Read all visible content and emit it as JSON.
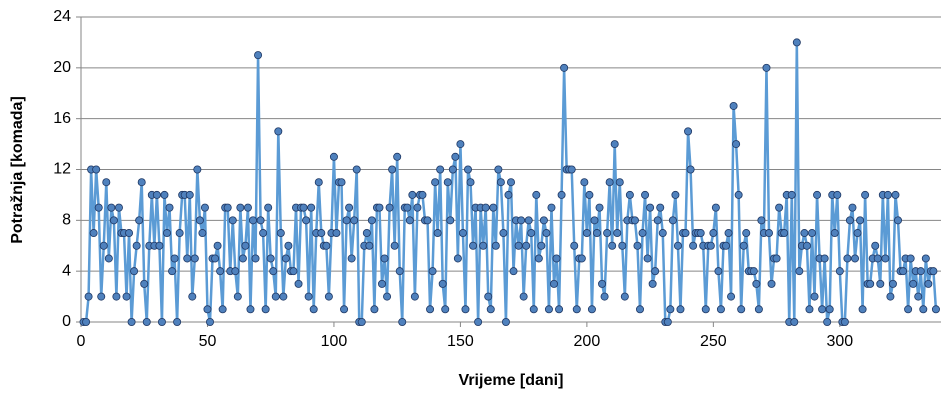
{
  "chart_data": {
    "type": "line",
    "x_label": "Vrijeme [dani]",
    "y_label": "Potražnja [komada]",
    "x": [
      1,
      2,
      3,
      4,
      5,
      6,
      7,
      8,
      9,
      10,
      11,
      12,
      13,
      14,
      15,
      16,
      17,
      18,
      19,
      20,
      21,
      22,
      23,
      24,
      25,
      26,
      27,
      28,
      29,
      30,
      31,
      32,
      33,
      34,
      35,
      36,
      37,
      38,
      39,
      40,
      41,
      42,
      43,
      44,
      45,
      46,
      47,
      48,
      49,
      50,
      51,
      52,
      53,
      54,
      55,
      56,
      57,
      58,
      59,
      60,
      61,
      62,
      63,
      64,
      65,
      66,
      67,
      68,
      69,
      70,
      71,
      72,
      73,
      74,
      75,
      76,
      77,
      78,
      79,
      80,
      81,
      82,
      83,
      84,
      85,
      86,
      87,
      88,
      89,
      90,
      91,
      92,
      93,
      94,
      95,
      96,
      97,
      98,
      99,
      100,
      101,
      102,
      103,
      104,
      105,
      106,
      107,
      108,
      109,
      110,
      111,
      112,
      113,
      114,
      115,
      116,
      117,
      118,
      119,
      120,
      121,
      122,
      123,
      124,
      125,
      126,
      127,
      128,
      129,
      130,
      131,
      132,
      133,
      134,
      135,
      136,
      137,
      138,
      139,
      140,
      141,
      142,
      143,
      144,
      145,
      146,
      147,
      148,
      149,
      150,
      151,
      152,
      153,
      154,
      155,
      156,
      157,
      158,
      159,
      160,
      161,
      162,
      163,
      164,
      165,
      166,
      167,
      168,
      169,
      170,
      171,
      172,
      173,
      174,
      175,
      176,
      177,
      178,
      179,
      180,
      181,
      182,
      183,
      184,
      185,
      186,
      187,
      188,
      189,
      190,
      191,
      192,
      193,
      194,
      195,
      196,
      197,
      198,
      199,
      200,
      201,
      202,
      203,
      204,
      205,
      206,
      207,
      208,
      209,
      210,
      211,
      212,
      213,
      214,
      215,
      216,
      217,
      218,
      219,
      220,
      221,
      222,
      223,
      224,
      225,
      226,
      227,
      228,
      229,
      230,
      231,
      232,
      233,
      234,
      235,
      236,
      237,
      238,
      239,
      240,
      241,
      242,
      243,
      244,
      245,
      246,
      247,
      248,
      249,
      250,
      251,
      252,
      253,
      254,
      255,
      256,
      257,
      258,
      259,
      260,
      261,
      262,
      263,
      264,
      265,
      266,
      267,
      268,
      269,
      270,
      271,
      272,
      273,
      274,
      275,
      276,
      277,
      278,
      279,
      280,
      281,
      282,
      283,
      284,
      285,
      286,
      287,
      288,
      289,
      290,
      291,
      292,
      293,
      294,
      295,
      296,
      297,
      298,
      299,
      300,
      301,
      302,
      303,
      304,
      305,
      306,
      307,
      308,
      309,
      310,
      311,
      312,
      313,
      314,
      315,
      316,
      317,
      318,
      319,
      320,
      321,
      322,
      323,
      324,
      325,
      326,
      327,
      328,
      329,
      330,
      331,
      332,
      333,
      334,
      335,
      336,
      337,
      338
    ],
    "values": [
      0,
      0,
      2,
      12,
      7,
      12,
      9,
      2,
      6,
      11,
      5,
      9,
      8,
      2,
      9,
      7,
      7,
      2,
      7,
      0,
      4,
      6,
      8,
      11,
      3,
      0,
      6,
      10,
      6,
      10,
      6,
      0,
      10,
      7,
      9,
      4,
      5,
      0,
      7,
      10,
      10,
      5,
      10,
      2,
      5,
      12,
      8,
      7,
      9,
      1,
      0,
      5,
      5,
      6,
      4,
      1,
      9,
      9,
      4,
      8,
      4,
      2,
      9,
      5,
      6,
      9,
      1,
      8,
      5,
      21,
      8,
      7,
      1,
      9,
      5,
      4,
      2,
      15,
      7,
      2,
      5,
      6,
      4,
      4,
      9,
      3,
      9,
      9,
      8,
      2,
      9,
      1,
      7,
      11,
      7,
      6,
      6,
      2,
      7,
      13,
      7,
      11,
      11,
      1,
      8,
      9,
      5,
      8,
      12,
      0,
      0,
      6,
      7,
      6,
      8,
      1,
      9,
      9,
      3,
      5,
      2,
      9,
      12,
      6,
      13,
      4,
      0,
      9,
      9,
      8,
      10,
      2,
      9,
      10,
      10,
      8,
      8,
      1,
      4,
      11,
      7,
      12,
      3,
      1,
      11,
      8,
      12,
      13,
      5,
      14,
      7,
      1,
      12,
      11,
      6,
      9,
      0,
      9,
      6,
      9,
      2,
      1,
      9,
      6,
      12,
      11,
      7,
      0,
      10,
      11,
      4,
      8,
      6,
      8,
      2,
      6,
      8,
      7,
      1,
      10,
      5,
      6,
      8,
      7,
      1,
      9,
      3,
      5,
      1,
      10,
      20,
      12,
      12,
      12,
      6,
      1,
      5,
      5,
      11,
      7,
      10,
      1,
      8,
      7,
      9,
      3,
      2,
      7,
      11,
      6,
      14,
      7,
      11,
      6,
      2,
      8,
      10,
      8,
      8,
      6,
      1,
      7,
      10,
      5,
      9,
      3,
      4,
      8,
      9,
      7,
      0,
      0,
      1,
      8,
      10,
      6,
      1,
      7,
      7,
      15,
      12,
      6,
      7,
      7,
      7,
      6,
      1,
      6,
      6,
      7,
      9,
      4,
      1,
      6,
      6,
      7,
      2,
      17,
      14,
      10,
      1,
      6,
      7,
      4,
      4,
      4,
      3,
      1,
      8,
      7,
      20,
      7,
      3,
      5,
      5,
      9,
      7,
      7,
      10,
      0,
      10,
      0,
      22,
      4,
      6,
      7,
      6,
      1,
      7,
      2,
      10,
      5,
      1,
      5,
      0,
      1,
      10,
      7,
      10,
      4,
      0,
      0,
      5,
      8,
      9,
      5,
      7,
      8,
      1,
      10,
      3,
      3,
      5,
      6,
      5,
      3,
      10,
      5,
      10,
      2,
      3,
      10,
      8,
      4,
      4,
      5,
      1,
      5,
      3,
      4,
      2,
      4,
      1,
      5,
      3,
      4,
      4,
      1
    ],
    "color": "#5b9bd5",
    "marker_color": "#4f81bd",
    "marker_edge": "#1f3864",
    "xlim": [
      0,
      340
    ],
    "xticks": [
      0,
      50,
      100,
      150,
      200,
      250,
      300
    ],
    "ylim": [
      0,
      24
    ],
    "yticks": [
      0,
      4,
      8,
      12,
      16,
      20,
      24
    ],
    "grid": true
  }
}
